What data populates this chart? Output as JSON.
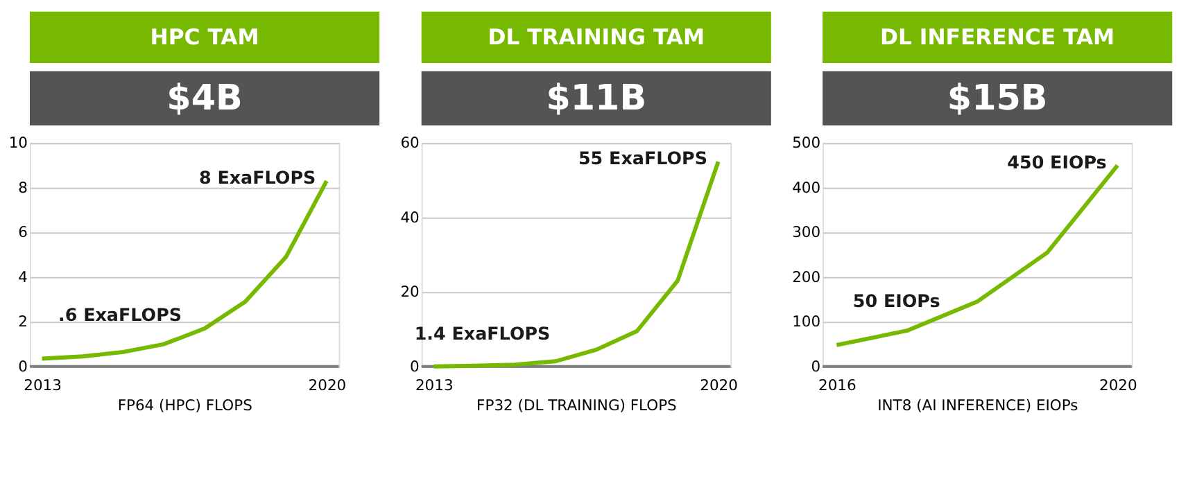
{
  "chart_data": [
    {
      "type": "line",
      "title": "HPC TAM",
      "subtitle": "$4B",
      "xlabel": "FP64 (HPC) FLOPS",
      "color": "#76b900",
      "grid": "y",
      "x": [
        2013,
        2014,
        2015,
        2016,
        2017,
        2018,
        2019,
        2020
      ],
      "values": [
        0.35,
        0.45,
        0.65,
        1.0,
        1.7,
        2.9,
        4.9,
        8.3
      ],
      "xlim": [
        2012.7,
        2020.3
      ],
      "xticks": [
        2013,
        2020
      ],
      "ylim": [
        0,
        10
      ],
      "yticks": [
        0,
        2,
        4,
        6,
        8,
        10
      ],
      "annotations": [
        {
          "text": "8 ExaFLOPS",
          "x": 2020,
          "y": 8.3
        },
        {
          "text": ".6 ExaFLOPS",
          "x": 2013,
          "y": 0.35
        }
      ]
    },
    {
      "type": "line",
      "title": "DL TRAINING TAM",
      "subtitle": "$11B",
      "xlabel": "FP32 (DL TRAINING) FLOPS",
      "color": "#76b900",
      "grid": "y",
      "x": [
        2013,
        2014,
        2015,
        2016,
        2017,
        2018,
        2019,
        2020
      ],
      "values": [
        0,
        0.2,
        0.5,
        1.4,
        4.5,
        9.5,
        23,
        55
      ],
      "xlim": [
        2012.7,
        2020.3
      ],
      "xticks": [
        2013,
        2020
      ],
      "ylim": [
        0,
        60
      ],
      "yticks": [
        0,
        20,
        40,
        60
      ],
      "annotations": [
        {
          "text": "55 ExaFLOPS",
          "x": 2020,
          "y": 55
        },
        {
          "text": "1.4 ExaFLOPS",
          "x": 2016,
          "y": 1.4
        }
      ]
    },
    {
      "type": "line",
      "title": "DL INFERENCE TAM",
      "subtitle": "$15B",
      "xlabel": "INT8 (AI INFERENCE) EIOPs",
      "color": "#76b900",
      "grid": "y",
      "x": [
        2016,
        2017,
        2018,
        2019,
        2020
      ],
      "values": [
        48,
        80,
        145,
        255,
        450
      ],
      "xlim": [
        2015.8,
        2020.2
      ],
      "xticks": [
        2016,
        2020
      ],
      "ylim": [
        0,
        500
      ],
      "yticks": [
        0,
        100,
        200,
        300,
        400,
        500
      ],
      "annotations": [
        {
          "text": "450 EIOPs",
          "x": 2020,
          "y": 450
        },
        {
          "text": "50 EIOPs",
          "x": 2016,
          "y": 48
        }
      ]
    }
  ]
}
